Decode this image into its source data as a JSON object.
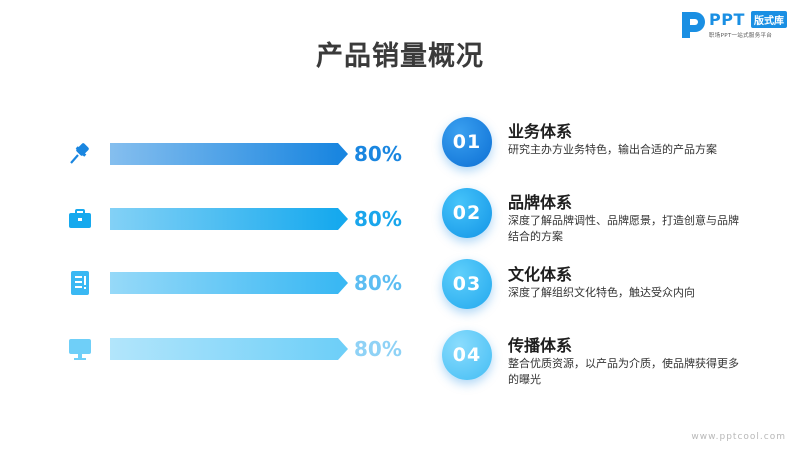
{
  "title": "产品销量概况",
  "logo": {
    "brand": "PPT",
    "badge": "版式库",
    "tagline": "职场PPT一站式服务平台"
  },
  "chart_data": {
    "type": "bar",
    "orientation": "horizontal",
    "categories": [
      "pin-icon",
      "briefcase-icon",
      "document-icon",
      "monitor-icon"
    ],
    "values": [
      80,
      80,
      80,
      80
    ],
    "value_labels": [
      "80%",
      "80%",
      "80%",
      "80%"
    ],
    "xlim": [
      0,
      100
    ],
    "colors": [
      "#1a86e0",
      "#16a9ee",
      "#3ab8f3",
      "#6fcff8"
    ],
    "label_colors": [
      "#1a86e0",
      "#1aa6ec",
      "#5cbdf2",
      "#8fd2f6"
    ]
  },
  "features": [
    {
      "num": "01",
      "title": "业务体系",
      "desc": "研究主办方业务特色，输出合适的产品方案"
    },
    {
      "num": "02",
      "title": "品牌体系",
      "desc": "深度了解品牌调性、品牌愿景，打造创意与品牌结合的方案"
    },
    {
      "num": "03",
      "title": "文化体系",
      "desc": "深度了解组织文化特色，触达受众内向"
    },
    {
      "num": "04",
      "title": "传播体系",
      "desc": "整合优质资源，以产品为介质，使品牌获得更多的曝光"
    }
  ],
  "watermark": "www.pptcool.com"
}
